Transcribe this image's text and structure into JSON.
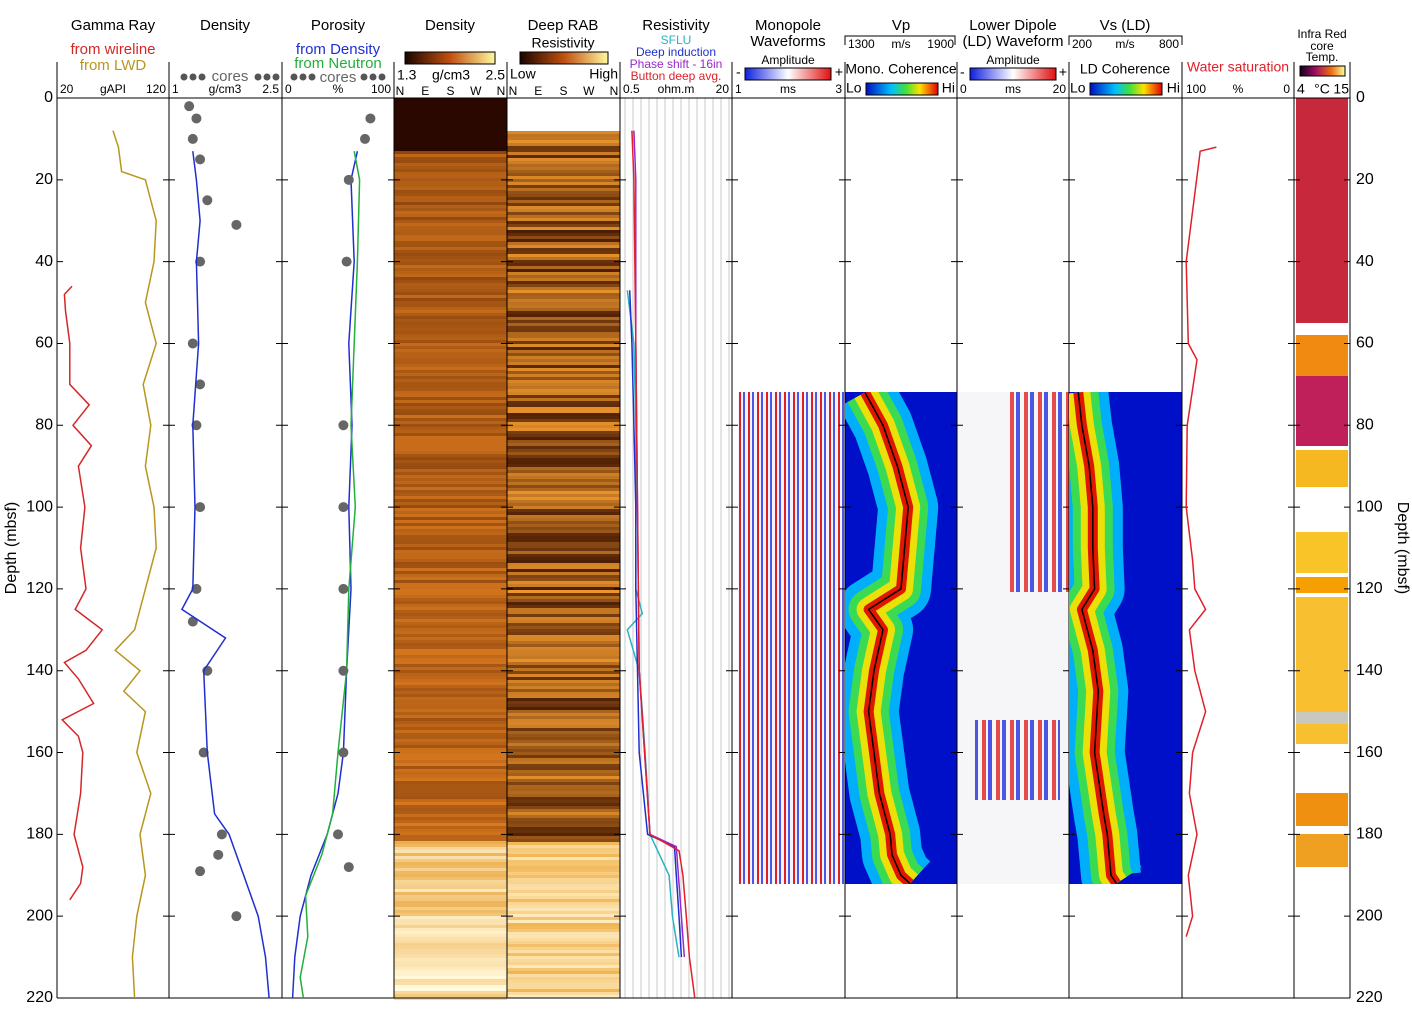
{
  "chart_data": {
    "type": "well-log",
    "y_label": "Depth (mbsf)",
    "ylim": [
      0,
      220
    ],
    "yticks": [
      0,
      20,
      40,
      60,
      80,
      100,
      120,
      140,
      160,
      180,
      200,
      220
    ],
    "tracks": [
      {
        "kind": "curves",
        "title": "Gamma Ray",
        "xlim": [
          20,
          120
        ],
        "xticks": [
          20,
          120
        ],
        "unit": "gAPI",
        "series": [
          {
            "name": "from wireline",
            "color": "#d62728",
            "depth": [
              46,
              48,
              52,
              60,
              70,
              75,
              80,
              85,
              90,
              100,
              110,
              120,
              125,
              130,
              135,
              138,
              142,
              148,
              152,
              156,
              160,
              170,
              180,
              188,
              192,
              196
            ],
            "values": [
              32,
              25,
              26,
              30,
              30,
              48,
              33,
              50,
              38,
              44,
              40,
              45,
              35,
              60,
              45,
              25,
              38,
              52,
              23,
              38,
              42,
              40,
              34,
              42,
              40,
              30
            ]
          },
          {
            "name": "from LWD",
            "color": "#b8961e",
            "depth": [
              8,
              12,
              18,
              20,
              25,
              30,
              40,
              50,
              60,
              70,
              80,
              90,
              100,
              110,
              120,
              130,
              135,
              140,
              145,
              150,
              160,
              170,
              180,
              190,
              200,
              210,
              220
            ],
            "values": [
              70,
              75,
              78,
              100,
              105,
              110,
              108,
              100,
              110,
              98,
              105,
              100,
              108,
              110,
              100,
              90,
              72,
              95,
              80,
              100,
              92,
              105,
              95,
              100,
              92,
              88,
              90
            ]
          }
        ]
      },
      {
        "kind": "curves",
        "title": "Density",
        "xlim": [
          1,
          2.5
        ],
        "xticks": [
          1,
          2.5
        ],
        "unit": "g/cm3",
        "series": [
          {
            "name": "cores",
            "color": "#666666",
            "style": "points",
            "depth": [
              2,
              5,
              10,
              15,
              25,
              31,
              40,
              60,
              70,
              80,
              100,
              120,
              128,
              140,
              160,
              180,
              185,
              189,
              200
            ],
            "values": [
              1.25,
              1.35,
              1.3,
              1.4,
              1.5,
              1.9,
              1.4,
              1.3,
              1.4,
              1.35,
              1.4,
              1.35,
              1.3,
              1.5,
              1.45,
              1.7,
              1.65,
              1.4,
              1.9
            ]
          },
          {
            "color": "#1f2fd0",
            "depth": [
              13,
              20,
              30,
              40,
              60,
              80,
              100,
              120,
              125,
              132,
              140,
              160,
              175,
              180,
              190,
              200,
              210,
              220
            ],
            "values": [
              1.3,
              1.35,
              1.4,
              1.35,
              1.38,
              1.3,
              1.33,
              1.3,
              1.15,
              1.75,
              1.45,
              1.5,
              1.6,
              1.8,
              2.0,
              2.2,
              2.3,
              2.35
            ]
          }
        ]
      },
      {
        "kind": "curves",
        "title": "Porosity",
        "xlim": [
          0,
          100
        ],
        "xticks": [
          0,
          100
        ],
        "unit": "%",
        "series": [
          {
            "name": "from Density",
            "color": "#1f2fd0",
            "depth": [
              13,
              20,
              40,
              60,
              80,
              100,
              120,
              140,
              160,
              170,
              180,
              190,
              200,
              210,
              220
            ],
            "values": [
              68,
              62,
              65,
              60,
              63,
              60,
              62,
              58,
              55,
              50,
              40,
              25,
              15,
              10,
              8
            ]
          },
          {
            "name": "from Neutron",
            "color": "#22b03a",
            "depth": [
              13,
              20,
              40,
              60,
              80,
              100,
              120,
              140,
              160,
              175,
              185,
              195,
              205,
              215,
              220
            ],
            "values": [
              65,
              70,
              68,
              65,
              62,
              66,
              60,
              58,
              50,
              45,
              35,
              20,
              22,
              15,
              18
            ]
          },
          {
            "name": "cores",
            "color": "#666666",
            "style": "points",
            "depth": [
              5,
              10,
              20,
              40,
              80,
              100,
              120,
              140,
              160,
              180,
              188
            ],
            "values": [
              80,
              75,
              60,
              58,
              55,
              55,
              55,
              55,
              55,
              50,
              60
            ]
          }
        ]
      },
      {
        "kind": "image",
        "title": "Density",
        "xticks": [
          1.3,
          2.5
        ],
        "unit": "g/cm3",
        "azimuths": [
          "N",
          "E",
          "S",
          "W",
          "N"
        ]
      },
      {
        "kind": "image",
        "title": "Deep RAB",
        "subtitle": "Resistivity",
        "labels": [
          "Low",
          "High"
        ],
        "azimuths": [
          "N",
          "E",
          "S",
          "W",
          "N"
        ]
      },
      {
        "kind": "curves",
        "title": "Resistivity",
        "xlim": [
          0.5,
          20
        ],
        "xticks": [
          0.5,
          20
        ],
        "unit": "ohm.m",
        "log": true,
        "series": [
          {
            "name": "SFLU",
            "color": "#27b3c0",
            "depth": [
              47,
              60,
              80,
              100,
              120,
              126,
              130,
              140,
              150,
              160,
              170,
              180,
              190,
              200,
              210
            ],
            "values": [
              0.6,
              0.75,
              0.8,
              0.8,
              0.8,
              1.0,
              0.6,
              0.9,
              1.0,
              1.1,
              1.2,
              1.3,
              2.5,
              2.8,
              3.5
            ]
          },
          {
            "name": "Deep induction",
            "color": "#1f2fd0",
            "depth": [
              47,
              60,
              80,
              100,
              120,
              140,
              160,
              180,
              183,
              190,
              200,
              210
            ],
            "values": [
              0.65,
              0.7,
              0.75,
              0.8,
              0.8,
              0.85,
              0.9,
              1.2,
              3.0,
              3.2,
              3.5,
              3.8
            ]
          },
          {
            "name": "Phase shift - 16in",
            "color": "#9b28c8",
            "depth": [
              8,
              20,
              60,
              100,
              140,
              180,
              183,
              200,
              210
            ],
            "values": [
              0.75,
              0.8,
              0.8,
              0.85,
              0.9,
              1.3,
              3.2,
              3.8,
              4.2
            ]
          },
          {
            "name": "Button deep avg.",
            "color": "#e0202a",
            "depth": [
              8,
              20,
              60,
              100,
              140,
              180,
              184,
              190,
              200,
              210,
              220
            ],
            "values": [
              0.7,
              0.75,
              0.8,
              0.85,
              0.9,
              1.3,
              3.5,
              4,
              4.5,
              5,
              6
            ]
          }
        ]
      },
      {
        "kind": "waveform",
        "title": [
          "Monopole",
          "Waveforms"
        ],
        "bar_label": "Amplitude",
        "labels": [
          "-",
          "+"
        ],
        "xticks": [
          1,
          3
        ],
        "unit": "ms"
      },
      {
        "kind": "coherence",
        "title": "Vp",
        "xlim": [
          1300,
          1900
        ],
        "xticks": [
          1300,
          1900
        ],
        "unit": "m/s",
        "bar_label": "Mono. Coherence",
        "labels": [
          "Lo",
          "Hi"
        ],
        "series": [
          {
            "color": "#000000",
            "depth": [
              72,
              80,
              90,
              100,
              110,
              120,
              125,
              130,
              140,
              150,
              160,
              170,
              180,
              185,
              190,
              192
            ],
            "values": [
              1400,
              1500,
              1580,
              1640,
              1620,
              1600,
              1420,
              1500,
              1450,
              1420,
              1450,
              1480,
              1540,
              1550,
              1600,
              1650
            ]
          }
        ]
      },
      {
        "kind": "waveform",
        "title": [
          "Lower Dipole",
          "(LD) Waveform"
        ],
        "bar_label": "Amplitude",
        "labels": [
          "-",
          "+"
        ],
        "xticks": [
          0,
          20
        ],
        "unit": "ms"
      },
      {
        "kind": "coherence",
        "title": "Vs (LD)",
        "xlim": [
          200,
          800
        ],
        "xticks": [
          200,
          800
        ],
        "unit": "m/s",
        "bar_label": "LD Coherence",
        "labels": [
          "Lo",
          "Hi"
        ],
        "series": [
          {
            "color": "#000000",
            "depth": [
              72,
              80,
              90,
              100,
              110,
              120,
              125,
              135,
              145,
              160,
              175,
              180,
              190,
              192
            ],
            "values": [
              240,
              260,
              300,
              320,
              320,
              330,
              260,
              320,
              350,
              330,
              380,
              400,
              420,
              450
            ]
          }
        ]
      },
      {
        "kind": "curves",
        "xlim": [
          100,
          0
        ],
        "xticks": [
          100,
          0
        ],
        "unit": "%",
        "series": [
          {
            "name": "Water saturation",
            "color": "#e0202a",
            "depth": [
              12,
              13,
              40,
              60,
              64,
              80,
              100,
              113,
              120,
              125,
              130,
              140,
              150,
              160,
              170,
              180,
              190,
              200,
              205
            ],
            "values": [
              70,
              85,
              98,
              96,
              88,
              97,
              98,
              92,
              90,
              80,
              95,
              90,
              80,
              92,
              95,
              88,
              96,
              92,
              98
            ]
          }
        ]
      },
      {
        "kind": "core",
        "title": [
          "Infra Red",
          "core",
          "Temp."
        ],
        "xticks": [
          4,
          15
        ],
        "unit": "°C"
      }
    ]
  }
}
